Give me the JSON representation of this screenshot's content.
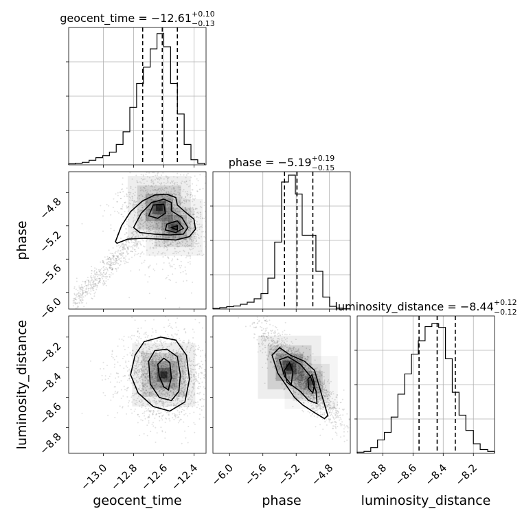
{
  "parameters": [
    "geocent_time",
    "phase",
    "luminosity_distance"
  ],
  "chart_data": {
    "type": "corner",
    "diagonal_titles": [
      {
        "param": "geocent_time",
        "label": "geocent_time",
        "median": "−12.61",
        "plus": "+0.10",
        "minus": "−0.13"
      },
      {
        "param": "phase",
        "label": "phase",
        "median": "−5.19",
        "plus": "+0.19",
        "minus": "−0.15"
      },
      {
        "param": "luminosity_distance",
        "label": "luminosity_distance",
        "median": "−8.44",
        "plus": "+0.12",
        "minus": "−0.12"
      }
    ],
    "axes": {
      "geocent_time": {
        "range": [
          -13.23,
          -12.32
        ],
        "ticks": [
          -13.0,
          -12.8,
          -12.6,
          -12.4
        ],
        "tick_labels": [
          "−13.0",
          "−12.8",
          "−12.6",
          "−12.4"
        ],
        "label": "geocent_time"
      },
      "phase": {
        "range": [
          -6.2,
          -4.55
        ],
        "ticks": [
          -6.0,
          -5.6,
          -5.2,
          -4.8
        ],
        "tick_labels": [
          "−6.0",
          "−5.6",
          "−5.2",
          "−4.8"
        ],
        "label": "phase"
      },
      "luminosity_distance": {
        "range": [
          -8.97,
          -8.06
        ],
        "ticks": [
          -8.8,
          -8.6,
          -8.4,
          -8.2
        ],
        "tick_labels": [
          "−8.8",
          "−8.6",
          "−8.4",
          "−8.2"
        ],
        "label": "luminosity_distance"
      }
    },
    "histograms": [
      {
        "param": "geocent_time",
        "edges": [
          -13.23,
          -13.185,
          -13.14,
          -13.095,
          -13.05,
          -13.005,
          -12.96,
          -12.915,
          -12.87,
          -12.825,
          -12.78,
          -12.735,
          -12.69,
          -12.645,
          -12.6,
          -12.555,
          -12.51,
          -12.465,
          -12.42,
          -12.375,
          -12.33
        ],
        "counts": [
          2,
          3,
          5,
          9,
          14,
          18,
          25,
          40,
          65,
          113,
          160,
          192,
          228,
          258,
          232,
          160,
          100,
          40,
          10,
          3
        ],
        "quantiles": [
          -12.74,
          -12.61,
          -12.51
        ],
        "ymax": 270
      },
      {
        "param": "phase",
        "edges": [
          -6.2,
          -6.118,
          -6.035,
          -5.953,
          -5.87,
          -5.788,
          -5.705,
          -5.623,
          -5.54,
          -5.458,
          -5.375,
          -5.293,
          -5.21,
          -5.128,
          -5.045,
          -4.963,
          -4.88,
          -4.798,
          -4.715,
          -4.633,
          -4.55
        ],
        "counts": [
          2,
          4,
          7,
          9,
          14,
          20,
          30,
          45,
          90,
          195,
          370,
          390,
          335,
          215,
          215,
          110,
          35,
          8,
          3,
          1
        ],
        "quantiles": [
          -5.34,
          -5.19,
          -5.0
        ],
        "ymax": 400
      },
      {
        "param": "luminosity_distance",
        "edges": [
          -8.97,
          -8.925,
          -8.88,
          -8.835,
          -8.79,
          -8.745,
          -8.7,
          -8.655,
          -8.61,
          -8.565,
          -8.52,
          -8.475,
          -8.43,
          -8.385,
          -8.34,
          -8.295,
          -8.25,
          -8.2,
          -8.155,
          -8.105,
          -8.06
        ],
        "counts": [
          3,
          5,
          15,
          35,
          55,
          95,
          155,
          208,
          260,
          295,
          332,
          340,
          330,
          248,
          160,
          100,
          60,
          25,
          10,
          5
        ],
        "quantiles": [
          -8.56,
          -8.44,
          -8.32
        ],
        "ymax": 360
      }
    ],
    "scatter_panels": [
      {
        "x": "geocent_time",
        "y": "phase",
        "peaks": [
          {
            "x": -12.63,
            "y": -4.98,
            "w": 1.0
          },
          {
            "x": -12.53,
            "y": -5.22,
            "w": 0.75
          }
        ],
        "contours": [
          [
            [
              -12.92,
              -5.39
            ],
            [
              -12.88,
              -5.2
            ],
            [
              -12.82,
              -5.03
            ],
            [
              -12.74,
              -4.9
            ],
            [
              -12.66,
              -4.83
            ],
            [
              -12.58,
              -4.82
            ],
            [
              -12.52,
              -4.86
            ],
            [
              -12.51,
              -4.95
            ],
            [
              -12.46,
              -5.03
            ],
            [
              -12.4,
              -5.12
            ],
            [
              -12.39,
              -5.24
            ],
            [
              -12.43,
              -5.33
            ],
            [
              -12.52,
              -5.37
            ],
            [
              -12.62,
              -5.36
            ],
            [
              -12.74,
              -5.35
            ],
            [
              -12.84,
              -5.36
            ],
            [
              -12.91,
              -5.41
            ]
          ],
          [
            [
              -12.8,
              -5.22
            ],
            [
              -12.75,
              -5.05
            ],
            [
              -12.68,
              -4.92
            ],
            [
              -12.6,
              -4.88
            ],
            [
              -12.55,
              -4.92
            ],
            [
              -12.55,
              -5.02
            ],
            [
              -12.48,
              -5.1
            ],
            [
              -12.44,
              -5.22
            ],
            [
              -12.47,
              -5.3
            ],
            [
              -12.56,
              -5.31
            ],
            [
              -12.66,
              -5.3
            ],
            [
              -12.76,
              -5.28
            ]
          ],
          [
            [
              -12.7,
              -5.08
            ],
            [
              -12.67,
              -4.95
            ],
            [
              -12.6,
              -4.94
            ],
            [
              -12.59,
              -5.05
            ],
            [
              -12.64,
              -5.11
            ]
          ],
          [
            [
              -12.58,
              -5.18
            ],
            [
              -12.51,
              -5.14
            ],
            [
              -12.47,
              -5.23
            ],
            [
              -12.52,
              -5.28
            ],
            [
              -12.59,
              -5.25
            ]
          ],
          [
            [
              -12.55,
              -5.22
            ],
            [
              -12.51,
              -5.2
            ],
            [
              -12.51,
              -5.25
            ]
          ]
        ]
      },
      {
        "x": "geocent_time",
        "y": "luminosity_distance",
        "peaks": [
          {
            "x": -12.6,
            "y": -8.45,
            "w": 1.0
          }
        ],
        "contours": [
          [
            [
              -12.79,
              -8.32
            ],
            [
              -12.73,
              -8.23
            ],
            [
              -12.62,
              -8.2
            ],
            [
              -12.52,
              -8.22
            ],
            [
              -12.45,
              -8.32
            ],
            [
              -12.43,
              -8.48
            ],
            [
              -12.46,
              -8.63
            ],
            [
              -12.56,
              -8.69
            ],
            [
              -12.67,
              -8.66
            ],
            [
              -12.77,
              -8.57
            ],
            [
              -12.82,
              -8.45
            ]
          ],
          [
            [
              -12.7,
              -8.36
            ],
            [
              -12.66,
              -8.29
            ],
            [
              -12.58,
              -8.28
            ],
            [
              -12.51,
              -8.33
            ],
            [
              -12.49,
              -8.45
            ],
            [
              -12.5,
              -8.56
            ],
            [
              -12.55,
              -8.62
            ],
            [
              -12.63,
              -8.6
            ],
            [
              -12.69,
              -8.51
            ]
          ],
          [
            [
              -12.64,
              -8.38
            ],
            [
              -12.6,
              -8.34
            ],
            [
              -12.56,
              -8.37
            ],
            [
              -12.55,
              -8.47
            ],
            [
              -12.57,
              -8.55
            ],
            [
              -12.6,
              -8.53
            ],
            [
              -12.63,
              -8.46
            ]
          ]
        ]
      },
      {
        "x": "phase",
        "y": "luminosity_distance",
        "peaks": [
          {
            "x": -5.28,
            "y": -8.4,
            "w": 1.0
          },
          {
            "x": -5.02,
            "y": -8.5,
            "w": 0.6
          }
        ],
        "contours": [
          [
            [
              -5.49,
              -8.32
            ],
            [
              -5.4,
              -8.27
            ],
            [
              -5.27,
              -8.32
            ],
            [
              -5.1,
              -8.36
            ],
            [
              -4.98,
              -8.42
            ],
            [
              -4.9,
              -8.57
            ],
            [
              -4.82,
              -8.72
            ],
            [
              -4.86,
              -8.74
            ],
            [
              -4.98,
              -8.7
            ],
            [
              -5.12,
              -8.65
            ],
            [
              -5.22,
              -8.6
            ],
            [
              -5.32,
              -8.52
            ],
            [
              -5.42,
              -8.44
            ]
          ],
          [
            [
              -5.4,
              -8.35
            ],
            [
              -5.3,
              -8.33
            ],
            [
              -5.15,
              -8.38
            ],
            [
              -5.03,
              -8.46
            ],
            [
              -4.96,
              -8.56
            ],
            [
              -4.95,
              -8.64
            ],
            [
              -5.05,
              -8.62
            ],
            [
              -5.15,
              -8.56
            ],
            [
              -5.25,
              -8.52
            ],
            [
              -5.34,
              -8.46
            ]
          ],
          [
            [
              -5.34,
              -8.42
            ],
            [
              -5.28,
              -8.37
            ],
            [
              -5.24,
              -8.43
            ],
            [
              -5.26,
              -8.52
            ],
            [
              -5.31,
              -8.5
            ]
          ],
          [
            [
              -5.06,
              -8.48
            ],
            [
              -5.01,
              -8.45
            ],
            [
              -4.98,
              -8.51
            ],
            [
              -5.0,
              -8.57
            ],
            [
              -5.05,
              -8.54
            ]
          ]
        ]
      }
    ]
  }
}
